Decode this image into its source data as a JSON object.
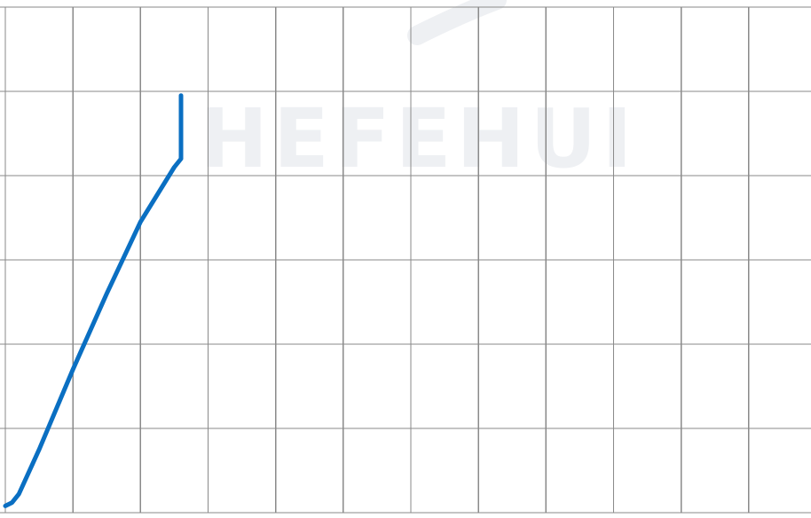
{
  "chart_data": {
    "type": "line",
    "title": "",
    "xlabel": "",
    "ylabel": "",
    "grid": true,
    "xlim": [
      0,
      12
    ],
    "ylim": [
      0,
      6
    ],
    "x_gridlines": 12,
    "y_gridlines": 6,
    "watermark": "HEFEHUI",
    "colors": {
      "series": "#0a6fc2",
      "grid": "#8a8a8a",
      "background": "#ffffff",
      "watermark": "#eef0f3"
    },
    "series": [
      {
        "points": [
          [
            0.0,
            0.08
          ],
          [
            0.1,
            0.12
          ],
          [
            0.2,
            0.22
          ],
          [
            0.5,
            0.75
          ],
          [
            1.0,
            1.7
          ],
          [
            1.5,
            2.6
          ],
          [
            2.0,
            3.45
          ],
          [
            2.5,
            4.1
          ],
          [
            2.6,
            4.2
          ],
          [
            2.6,
            4.95
          ]
        ]
      }
    ]
  }
}
